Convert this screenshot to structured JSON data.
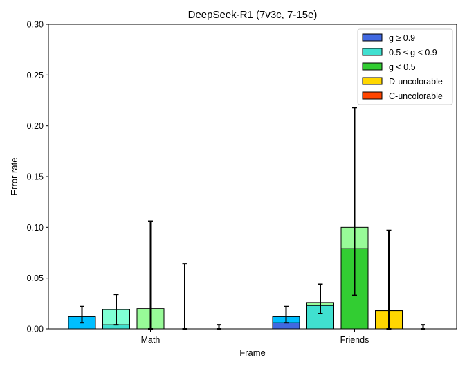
{
  "chart_data": {
    "type": "bar",
    "title": "DeepSeek-R1 (7v3c, 7-15e)",
    "xlabel": "Frame",
    "ylabel": "Error rate",
    "ylim": [
      0,
      0.3
    ],
    "yticks": [
      "0.00",
      "0.05",
      "0.10",
      "0.15",
      "0.20",
      "0.25",
      "0.30"
    ],
    "grid": false,
    "legend_position": "top-right",
    "categories": [
      "Math",
      "Friends"
    ],
    "legend": [
      {
        "label": "g ≥ 0.9",
        "color": "#4169e1"
      },
      {
        "label": "0.5 ≤ g < 0.9",
        "color": "#40e0d0"
      },
      {
        "label": "g < 0.5",
        "color": "#32cd32"
      },
      {
        "label": "D-uncolorable",
        "color": "#ffd700"
      },
      {
        "label": "C-uncolorable",
        "color": "#ff4500"
      }
    ],
    "groups": [
      {
        "category": "Math",
        "bars": [
          {
            "total": 0.012,
            "inner": 0.0,
            "light_color": "#00bfff",
            "dark_color": "#4169e1",
            "err": [
              0.006,
              0.022
            ]
          },
          {
            "total": 0.019,
            "inner": 0.004,
            "light_color": "#7fffd4",
            "dark_color": "#40e0d0",
            "err": [
              0.004,
              0.034
            ]
          },
          {
            "total": 0.02,
            "inner": 0.0,
            "light_color": "#98fb98",
            "dark_color": "#32cd32",
            "err": [
              0.0,
              0.106
            ]
          },
          {
            "total": 0.0,
            "inner": 0.0,
            "light_color": "#ffd700",
            "dark_color": "#ffd700",
            "err": [
              0.0,
              0.064
            ]
          },
          {
            "total": 0.0,
            "inner": 0.0,
            "light_color": "#ff4500",
            "dark_color": "#ff4500",
            "err": [
              0.0,
              0.004
            ]
          }
        ]
      },
      {
        "category": "Friends",
        "bars": [
          {
            "total": 0.012,
            "inner": 0.006,
            "light_color": "#00bfff",
            "dark_color": "#4169e1",
            "err": [
              0.006,
              0.022
            ]
          },
          {
            "total": 0.026,
            "inner": 0.023,
            "light_color": "#98fb98",
            "dark_color": "#40e0d0",
            "err": [
              0.015,
              0.044
            ]
          },
          {
            "total": 0.1,
            "inner": 0.079,
            "light_color": "#98fb98",
            "dark_color": "#32cd32",
            "err": [
              0.033,
              0.218
            ]
          },
          {
            "total": 0.018,
            "inner": 0.018,
            "light_color": "#ffd700",
            "dark_color": "#ffd700",
            "err": [
              0.0,
              0.097
            ]
          },
          {
            "total": 0.0,
            "inner": 0.0,
            "light_color": "#ff4500",
            "dark_color": "#ff4500",
            "err": [
              0.0,
              0.004
            ]
          }
        ]
      }
    ]
  }
}
